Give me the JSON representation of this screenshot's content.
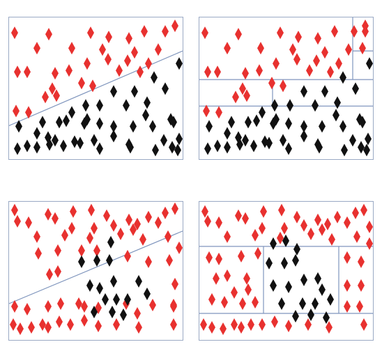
{
  "colors": {
    "class_a": "#e8312f",
    "class_b": "#111111",
    "boundary": "#7f95bd",
    "frame": "#9aa9c4"
  },
  "panels": [
    {
      "id": "p1",
      "boundary_type": "linear",
      "red": [
        [
          8,
          22
        ],
        [
          57,
          24
        ],
        [
          117,
          22
        ],
        [
          143,
          28
        ],
        [
          172,
          30
        ],
        [
          194,
          20
        ],
        [
          224,
          20
        ],
        [
          238,
          12
        ],
        [
          40,
          44
        ],
        [
          90,
          44
        ],
        [
          134,
          46
        ],
        [
          180,
          50
        ],
        [
          170,
          62
        ],
        [
          214,
          46
        ],
        [
          200,
          66
        ],
        [
          12,
          78
        ],
        [
          26,
          78
        ],
        [
          66,
          80
        ],
        [
          86,
          76
        ],
        [
          112,
          66
        ],
        [
          142,
          60
        ],
        [
          158,
          76
        ],
        [
          188,
          78
        ],
        [
          62,
          102
        ],
        [
          104,
          94
        ],
        [
          120,
          98
        ],
        [
          52,
          114
        ],
        [
          68,
          112
        ],
        [
          10,
          134
        ],
        [
          28,
          136
        ]
      ],
      "black": [
        [
          244,
          66
        ],
        [
          208,
          86
        ],
        [
          224,
          102
        ],
        [
          150,
          106
        ],
        [
          180,
          106
        ],
        [
          110,
          126
        ],
        [
          130,
          126
        ],
        [
          168,
          126
        ],
        [
          198,
          122
        ],
        [
          90,
          136
        ],
        [
          112,
          146
        ],
        [
          196,
          140
        ],
        [
          232,
          146
        ],
        [
          14,
          156
        ],
        [
          48,
          150
        ],
        [
          72,
          150
        ],
        [
          82,
          148
        ],
        [
          108,
          152
        ],
        [
          130,
          152
        ],
        [
          150,
          156
        ],
        [
          178,
          156
        ],
        [
          206,
          156
        ],
        [
          40,
          166
        ],
        [
          56,
          172
        ],
        [
          66,
          176
        ],
        [
          94,
          178
        ],
        [
          122,
          176
        ],
        [
          150,
          170
        ],
        [
          172,
          182
        ],
        [
          236,
          150
        ],
        [
          244,
          174
        ],
        [
          222,
          176
        ],
        [
          12,
          188
        ],
        [
          26,
          184
        ],
        [
          40,
          186
        ],
        [
          58,
          182
        ],
        [
          78,
          184
        ],
        [
          102,
          180
        ],
        [
          130,
          188
        ],
        [
          174,
          186
        ],
        [
          210,
          190
        ],
        [
          234,
          186
        ],
        [
          242,
          190
        ]
      ]
    },
    {
      "id": "p2",
      "boundary_type": "axis-aligned",
      "red": [
        [
          8,
          22
        ],
        [
          56,
          24
        ],
        [
          116,
          22
        ],
        [
          142,
          28
        ],
        [
          170,
          30
        ],
        [
          194,
          20
        ],
        [
          222,
          20
        ],
        [
          238,
          12
        ],
        [
          238,
          20
        ],
        [
          40,
          44
        ],
        [
          88,
          44
        ],
        [
          134,
          46
        ],
        [
          180,
          50
        ],
        [
          168,
          62
        ],
        [
          214,
          46
        ],
        [
          200,
          66
        ],
        [
          234,
          44
        ],
        [
          12,
          78
        ],
        [
          26,
          78
        ],
        [
          66,
          80
        ],
        [
          86,
          76
        ],
        [
          110,
          66
        ],
        [
          140,
          60
        ],
        [
          158,
          76
        ],
        [
          188,
          78
        ],
        [
          62,
          102
        ],
        [
          104,
          94
        ],
        [
          120,
          98
        ],
        [
          52,
          114
        ],
        [
          68,
          112
        ],
        [
          10,
          134
        ],
        [
          28,
          136
        ]
      ],
      "black": [
        [
          244,
          66
        ],
        [
          206,
          86
        ],
        [
          224,
          102
        ],
        [
          150,
          106
        ],
        [
          180,
          106
        ],
        [
          108,
          126
        ],
        [
          130,
          126
        ],
        [
          166,
          126
        ],
        [
          198,
          122
        ],
        [
          90,
          136
        ],
        [
          110,
          146
        ],
        [
          196,
          140
        ],
        [
          230,
          146
        ],
        [
          14,
          156
        ],
        [
          46,
          150
        ],
        [
          70,
          150
        ],
        [
          82,
          148
        ],
        [
          106,
          152
        ],
        [
          128,
          152
        ],
        [
          150,
          156
        ],
        [
          176,
          156
        ],
        [
          206,
          156
        ],
        [
          40,
          166
        ],
        [
          56,
          172
        ],
        [
          66,
          176
        ],
        [
          94,
          178
        ],
        [
          120,
          176
        ],
        [
          150,
          170
        ],
        [
          170,
          182
        ],
        [
          234,
          150
        ],
        [
          242,
          174
        ],
        [
          220,
          176
        ],
        [
          12,
          188
        ],
        [
          26,
          184
        ],
        [
          40,
          186
        ],
        [
          58,
          182
        ],
        [
          78,
          184
        ],
        [
          100,
          180
        ],
        [
          128,
          188
        ],
        [
          172,
          186
        ],
        [
          208,
          190
        ],
        [
          232,
          186
        ],
        [
          240,
          190
        ]
      ]
    },
    {
      "id": "p3",
      "boundary_type": "linear",
      "red": [
        [
          8,
          12
        ],
        [
          56,
          18
        ],
        [
          92,
          14
        ],
        [
          118,
          12
        ],
        [
          140,
          20
        ],
        [
          172,
          26
        ],
        [
          184,
          32
        ],
        [
          200,
          22
        ],
        [
          224,
          16
        ],
        [
          238,
          10
        ],
        [
          12,
          28
        ],
        [
          28,
          30
        ],
        [
          66,
          24
        ],
        [
          90,
          38
        ],
        [
          122,
          38
        ],
        [
          150,
          34
        ],
        [
          178,
          40
        ],
        [
          214,
          30
        ],
        [
          40,
          50
        ],
        [
          80,
          48
        ],
        [
          116,
          52
        ],
        [
          160,
          46
        ],
        [
          192,
          54
        ],
        [
          228,
          50
        ],
        [
          42,
          74
        ],
        [
          70,
          70
        ],
        [
          104,
          70
        ],
        [
          126,
          70
        ],
        [
          170,
          78
        ],
        [
          200,
          86
        ],
        [
          230,
          84
        ],
        [
          244,
          66
        ],
        [
          58,
          104
        ],
        [
          70,
          100
        ],
        [
          238,
          118
        ],
        [
          236,
          148
        ],
        [
          8,
          150
        ],
        [
          26,
          154
        ],
        [
          56,
          150
        ],
        [
          74,
          146
        ],
        [
          100,
          146
        ],
        [
          108,
          150
        ],
        [
          128,
          152
        ],
        [
          168,
          146
        ],
        [
          184,
          160
        ],
        [
          206,
          148
        ],
        [
          236,
          150
        ],
        [
          6,
          176
        ],
        [
          16,
          182
        ],
        [
          32,
          180
        ],
        [
          48,
          176
        ],
        [
          56,
          180
        ],
        [
          72,
          172
        ],
        [
          88,
          176
        ],
        [
          108,
          170
        ],
        [
          128,
          178
        ],
        [
          154,
          176
        ],
        [
          186,
          180
        ],
        [
          236,
          176
        ]
      ],
      "black": [
        [
          146,
          58
        ],
        [
          104,
          86
        ],
        [
          126,
          84
        ],
        [
          144,
          84
        ],
        [
          116,
          120
        ],
        [
          130,
          124
        ],
        [
          150,
          114
        ],
        [
          186,
          114
        ],
        [
          198,
          132
        ],
        [
          138,
          140
        ],
        [
          154,
          140
        ],
        [
          170,
          140
        ],
        [
          122,
          158
        ],
        [
          148,
          158
        ],
        [
          164,
          162
        ]
      ]
    },
    {
      "id": "p4",
      "boundary_type": "axis-aligned",
      "red": [
        [
          8,
          14
        ],
        [
          56,
          20
        ],
        [
          92,
          14
        ],
        [
          118,
          12
        ],
        [
          140,
          22
        ],
        [
          170,
          26
        ],
        [
          184,
          32
        ],
        [
          198,
          22
        ],
        [
          224,
          16
        ],
        [
          236,
          12
        ],
        [
          12,
          28
        ],
        [
          28,
          30
        ],
        [
          66,
          24
        ],
        [
          90,
          38
        ],
        [
          122,
          38
        ],
        [
          150,
          34
        ],
        [
          176,
          40
        ],
        [
          212,
          30
        ],
        [
          40,
          50
        ],
        [
          80,
          48
        ],
        [
          116,
          52
        ],
        [
          160,
          46
        ],
        [
          190,
          54
        ],
        [
          226,
          50
        ],
        [
          244,
          36
        ],
        [
          244,
          60
        ],
        [
          14,
          80
        ],
        [
          28,
          82
        ],
        [
          60,
          78
        ],
        [
          84,
          74
        ],
        [
          24,
          110
        ],
        [
          40,
          106
        ],
        [
          68,
          110
        ],
        [
          70,
          126
        ],
        [
          50,
          130
        ],
        [
          18,
          140
        ],
        [
          36,
          144
        ],
        [
          62,
          146
        ],
        [
          80,
          144
        ],
        [
          212,
          80
        ],
        [
          232,
          86
        ],
        [
          212,
          120
        ],
        [
          232,
          120
        ],
        [
          212,
          150
        ],
        [
          230,
          150
        ],
        [
          6,
          176
        ],
        [
          18,
          180
        ],
        [
          34,
          182
        ],
        [
          50,
          176
        ],
        [
          60,
          180
        ],
        [
          74,
          176
        ],
        [
          90,
          176
        ],
        [
          108,
          172
        ],
        [
          128,
          178
        ],
        [
          156,
          176
        ],
        [
          186,
          180
        ],
        [
          236,
          176
        ]
      ],
      "black": [
        [
          106,
          60
        ],
        [
          124,
          56
        ],
        [
          140,
          68
        ],
        [
          100,
          88
        ],
        [
          122,
          88
        ],
        [
          138,
          84
        ],
        [
          106,
          120
        ],
        [
          128,
          122
        ],
        [
          150,
          112
        ],
        [
          170,
          110
        ],
        [
          176,
          126
        ],
        [
          118,
          146
        ],
        [
          148,
          146
        ],
        [
          166,
          146
        ],
        [
          188,
          140
        ],
        [
          138,
          164
        ],
        [
          160,
          162
        ],
        [
          182,
          166
        ]
      ]
    }
  ]
}
